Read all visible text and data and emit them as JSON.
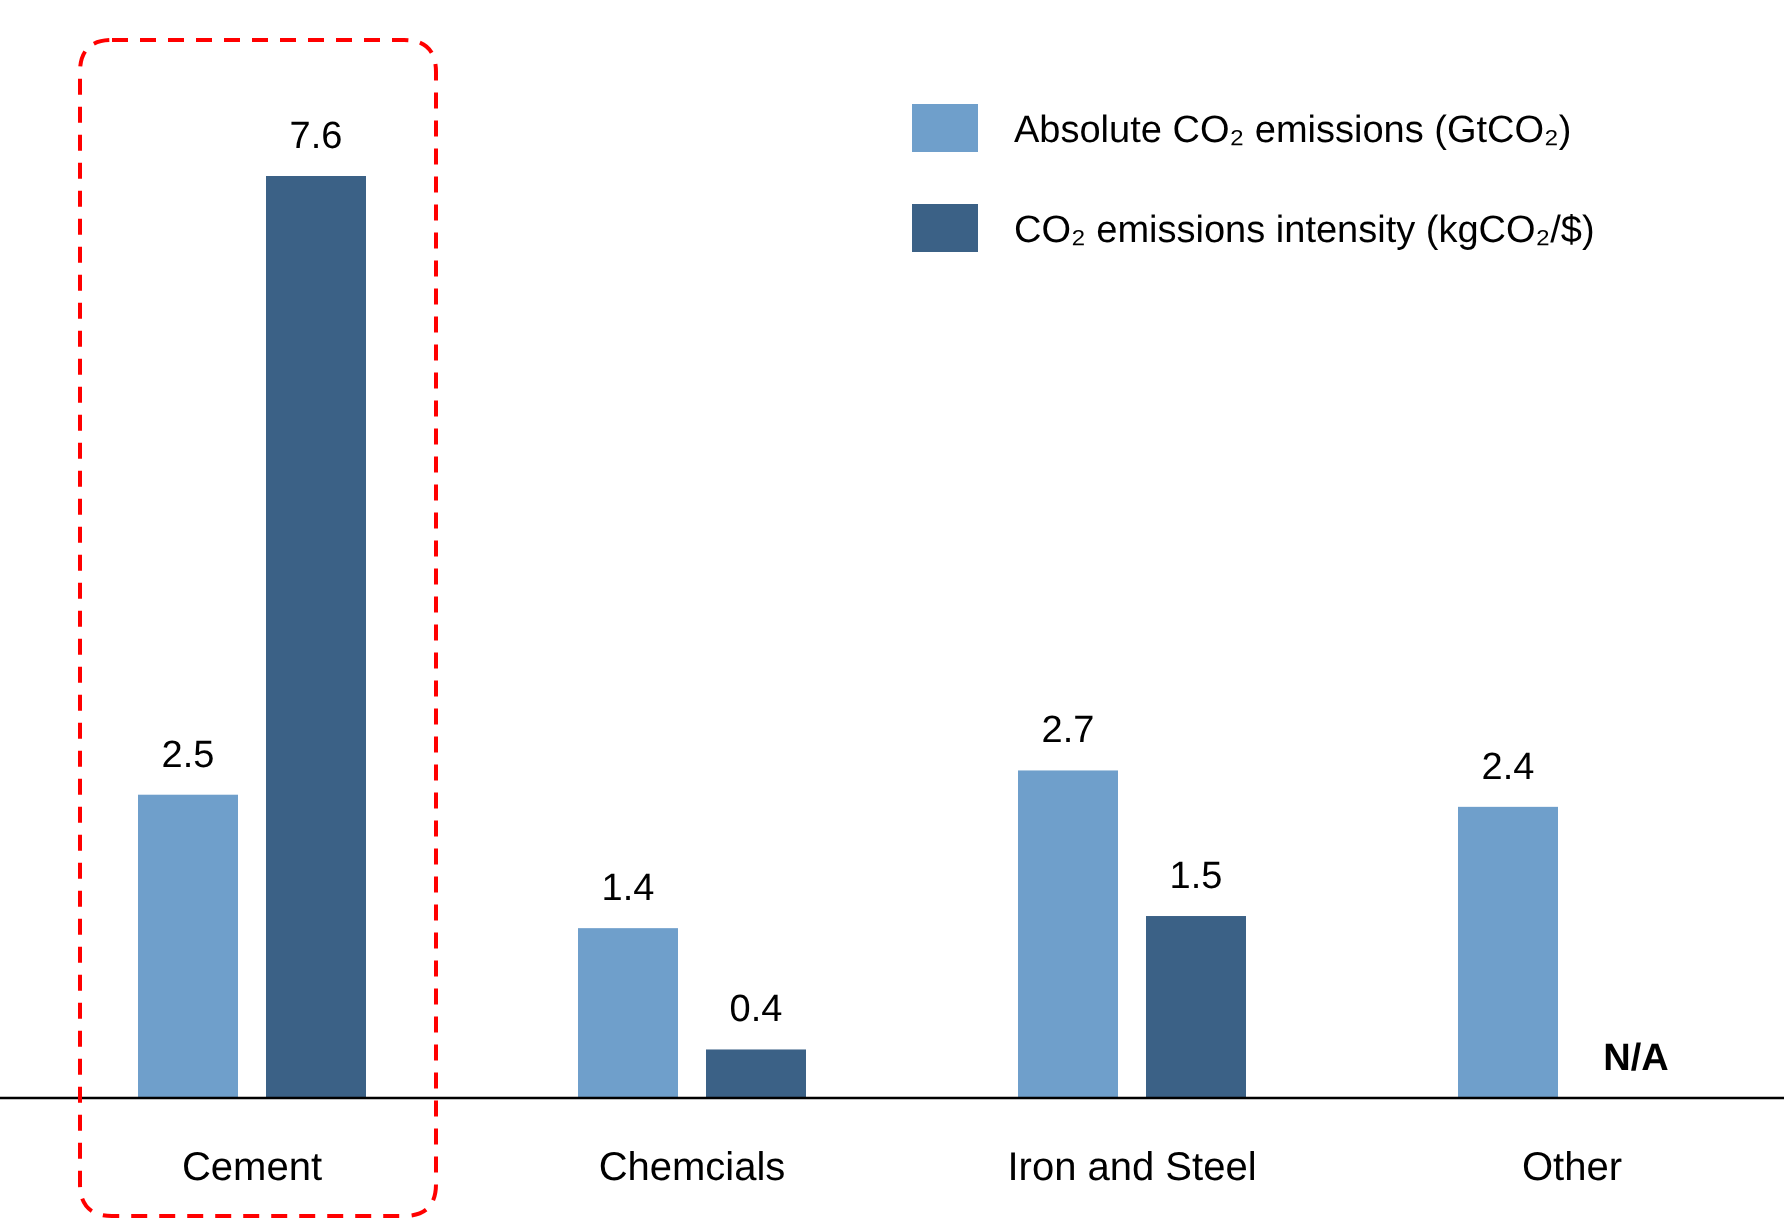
{
  "chart_data": {
    "type": "bar",
    "categories": [
      "Cement",
      "Chemcials",
      "Iron and Steel",
      "Other"
    ],
    "series": [
      {
        "name": "Absolute CO₂ emissions (GtCO₂)",
        "color": "#6f9fcb",
        "values": [
          2.5,
          1.4,
          2.7,
          2.4
        ],
        "value_labels": [
          "2.5",
          "1.4",
          "2.7",
          "2.4"
        ]
      },
      {
        "name": "CO₂ emissions intensity (kgCO₂/$)",
        "color": "#3b6186",
        "values": [
          7.6,
          0.4,
          1.5,
          null
        ],
        "value_labels": [
          "7.6",
          "0.4",
          "1.5",
          "N/A"
        ]
      }
    ],
    "tick_labels": "x",
    "legend": "top right"
  }
}
